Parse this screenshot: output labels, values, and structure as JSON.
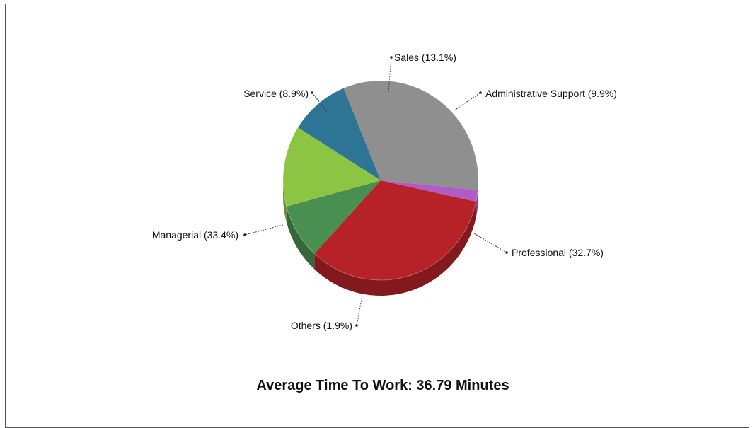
{
  "chart_data": {
    "type": "pie",
    "title": "Average Time To Work: 36.79 Minutes",
    "slices": [
      {
        "label": "Administrative Support (9.9%)",
        "value": 9.9,
        "color": "#2e7595"
      },
      {
        "label": "Professional (32.7%)",
        "value": 32.7,
        "color": "#8f8f8f"
      },
      {
        "label": "Others (1.9%)",
        "value": 1.9,
        "color": "#b15cc4"
      },
      {
        "label": "Managerial (33.4%)",
        "value": 33.4,
        "color": "#b62228"
      },
      {
        "label": "Service (8.9%)",
        "value": 8.9,
        "color": "#4a8f52"
      },
      {
        "label": "Sales (13.1%)",
        "value": 13.1,
        "color": "#8cc443"
      }
    ],
    "legend": "none",
    "style": "3d-tilted"
  }
}
